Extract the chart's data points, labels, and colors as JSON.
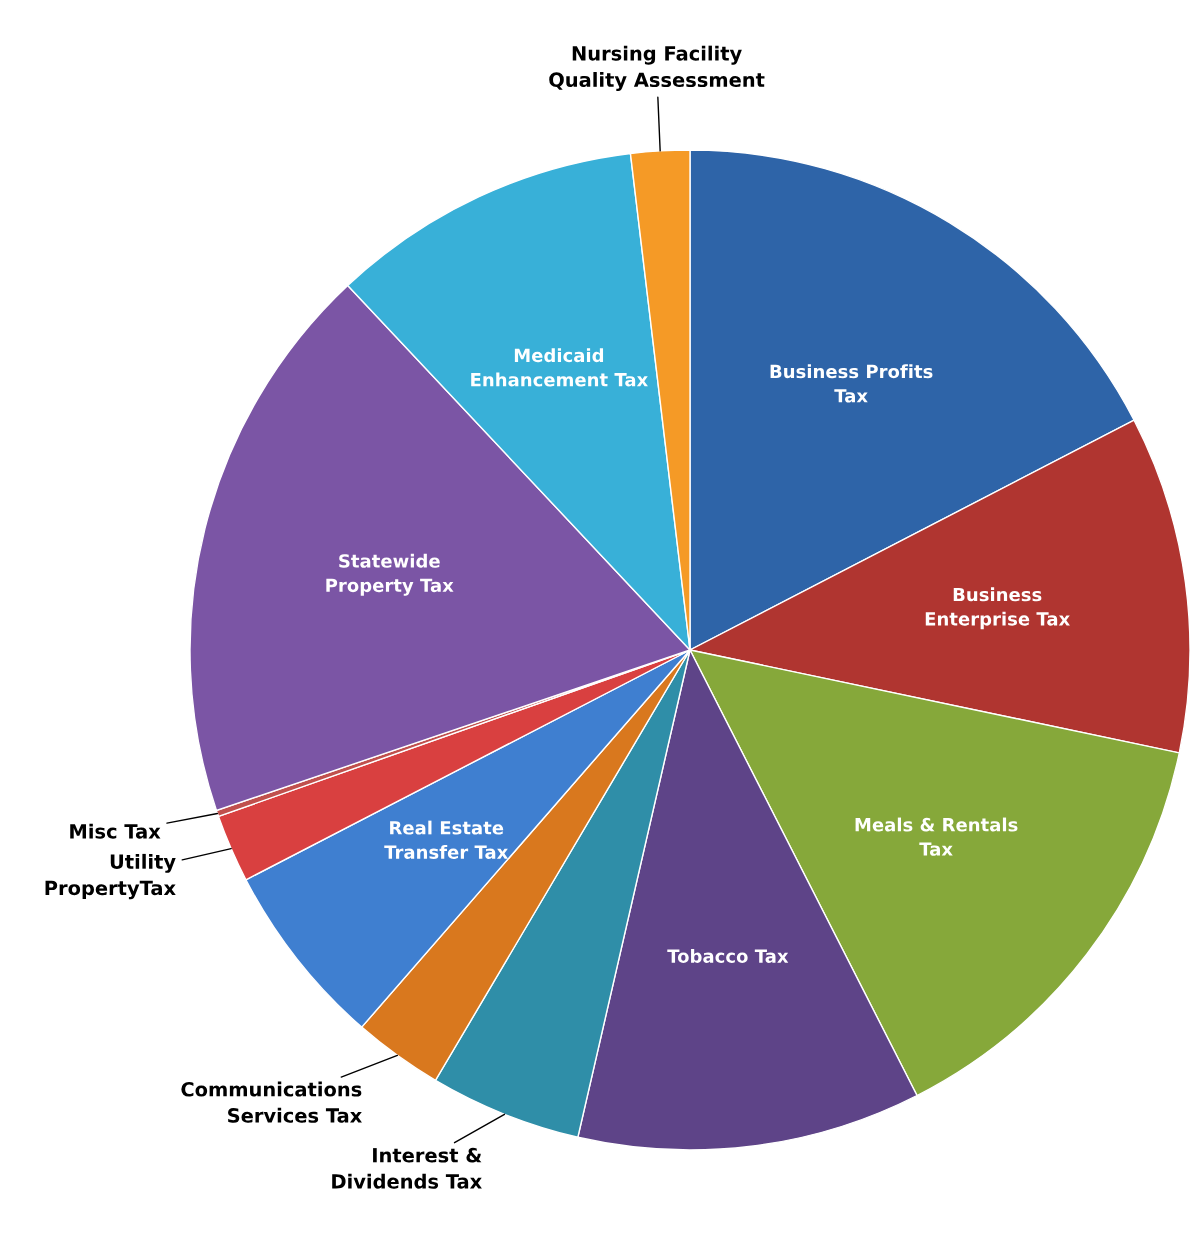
{
  "chart_data": {
    "type": "pie",
    "categories": [
      "Business Profits\nTax",
      "Business\nEnterprise Tax",
      "Meals & Rentals\nTax",
      "Tobacco Tax",
      "Interest &\nDividends Tax",
      "Communications\nServices Tax",
      "Real Estate\nTransfer Tax",
      "Utility\nPropertyTax",
      "Misc Tax",
      "Statewide\nProperty Tax",
      "Medicaid\nEnhancement Tax",
      "Nursing Facility\nQuality Assessment"
    ],
    "values": [
      17.4,
      10.9,
      14.2,
      11.1,
      4.9,
      2.9,
      6.0,
      2.2,
      0.2,
      18.2,
      10.1,
      1.9
    ],
    "colors": [
      "#2e64a8",
      "#b03530",
      "#86a83a",
      "#5e4488",
      "#2f8ea8",
      "#d9781e",
      "#3f7fd0",
      "#d94040",
      "#c0504d",
      "#7b55a5",
      "#38b0d8",
      "#f59a26"
    ],
    "legend": false
  }
}
